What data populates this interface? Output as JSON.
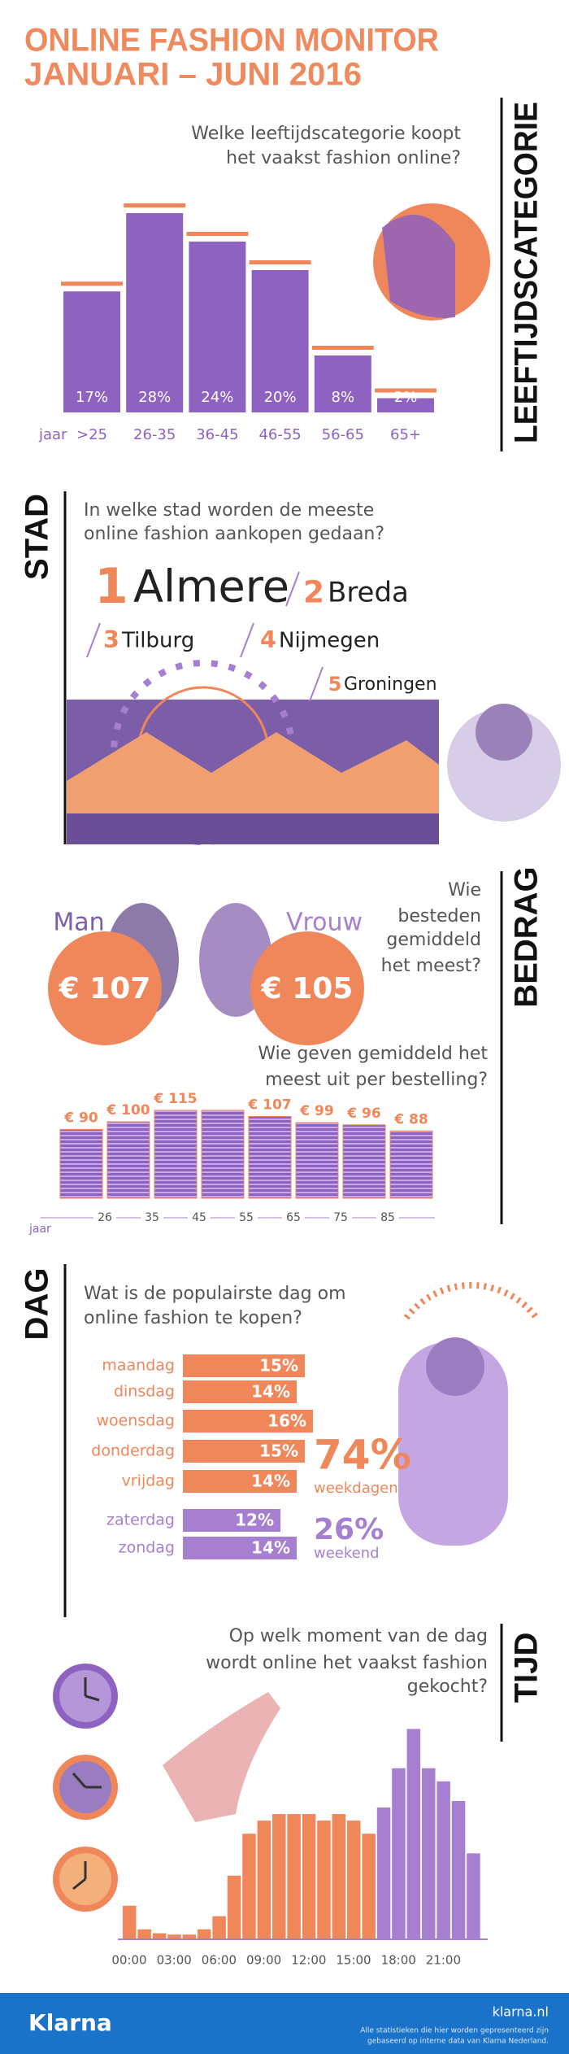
{
  "header": {
    "title_line1": "ONLINE FASHION MONITOR",
    "title_line2": "JANUARI – JUNI 2016"
  },
  "age": {
    "label": "LEEFTIJDSCATEGORIE",
    "question": [
      "Welke leeftijdscategorie koopt",
      "het vaakst fashion online?"
    ],
    "axis_label": "jaar",
    "categories": [
      ">25",
      "26-35",
      "36-45",
      "46-55",
      "56-65",
      "65+"
    ],
    "values": [
      17,
      28,
      24,
      20,
      8,
      2
    ],
    "value_labels": [
      "17%",
      "28%",
      "24%",
      "20%",
      "8%",
      "2%"
    ]
  },
  "city": {
    "label": "STAD",
    "question": [
      "In welke stad worden de meeste",
      "online fashion aankopen gedaan?"
    ],
    "ranking": [
      {
        "rank": 1,
        "name": "Almere"
      },
      {
        "rank": 2,
        "name": "Breda"
      },
      {
        "rank": 3,
        "name": "Tilburg"
      },
      {
        "rank": 4,
        "name": "Nijmegen"
      },
      {
        "rank": 5,
        "name": "Groningen"
      }
    ]
  },
  "spending": {
    "label": "BEDRAG",
    "question": [
      "Wie",
      "besteden",
      "gemiddeld",
      "het meest?"
    ],
    "people": [
      {
        "name": "Man",
        "amount": "€ 107"
      },
      {
        "name": "Vrouw",
        "amount": "€ 105"
      }
    ],
    "order_question": [
      "Wie geven gemiddeld het",
      "meest uit per bestelling?"
    ],
    "axis_label": "jaar",
    "xticks": [
      26,
      35,
      45,
      55,
      65,
      75,
      85
    ],
    "values": [
      90,
      100,
      115,
      115,
      107,
      99,
      96,
      88
    ],
    "value_labels": [
      "€ 90",
      "€ 100",
      "€ 115",
      null,
      "€ 107",
      "€ 99",
      "€ 96",
      "€ 88"
    ]
  },
  "day": {
    "label": "DAG",
    "question": [
      "Wat is de populairste dag om",
      "online fashion te kopen?"
    ],
    "categories": [
      "maandag",
      "dinsdag",
      "woensdag",
      "donderdag",
      "vrijdag",
      "zaterdag",
      "zondag"
    ],
    "values": [
      15,
      14,
      16,
      15,
      14,
      12,
      14
    ],
    "value_labels": [
      "15%",
      "14%",
      "16%",
      "15%",
      "14%",
      "12%",
      "14%"
    ],
    "colors": [
      "#f0875a",
      "#f0875a",
      "#f0875a",
      "#f0875a",
      "#f0875a",
      "#a77fd0",
      "#a77fd0"
    ],
    "weekdays": {
      "share": "74%",
      "text": "weekdagen"
    },
    "weekend": {
      "share": "26%",
      "text": "weekend"
    }
  },
  "time": {
    "label": "TIJD",
    "question": [
      "Op welk moment van de dag",
      "wordt online het vaakst fashion",
      "gekocht?"
    ],
    "categories": [
      "00:00",
      null,
      null,
      "03:00",
      null,
      null,
      "06:00",
      null,
      null,
      "09:00",
      null,
      null,
      "12:00",
      null,
      null,
      "15:00",
      null,
      null,
      "18:00",
      null,
      null,
      "21:00",
      null,
      null
    ],
    "values": [
      25,
      7,
      4,
      3,
      3,
      7,
      17,
      48,
      80,
      90,
      95,
      95,
      95,
      90,
      95,
      90,
      80,
      100,
      130,
      160,
      130,
      120,
      105,
      65
    ],
    "colors": [
      "#f0875a",
      "#f0875a",
      "#f0875a",
      "#f0875a",
      "#f0875a",
      "#f0875a",
      "#f0875a",
      "#f0875a",
      "#f0875a",
      "#f0875a",
      "#f0875a",
      "#f0875a",
      "#f0875a",
      "#f0875a",
      "#f0875a",
      "#f0875a",
      "#f0875a",
      "#a77fd0",
      "#a77fd0",
      "#a77fd0",
      "#a77fd0",
      "#a77fd0",
      "#a77fd0",
      "#a77fd0"
    ]
  },
  "footer": {
    "logo": "Klarna",
    "site": "klarna.nl",
    "note": [
      "Alle statistieken die hier worden gepresenteerd zijn",
      "gebaseerd op interne data van Klarna Nederland."
    ]
  }
}
